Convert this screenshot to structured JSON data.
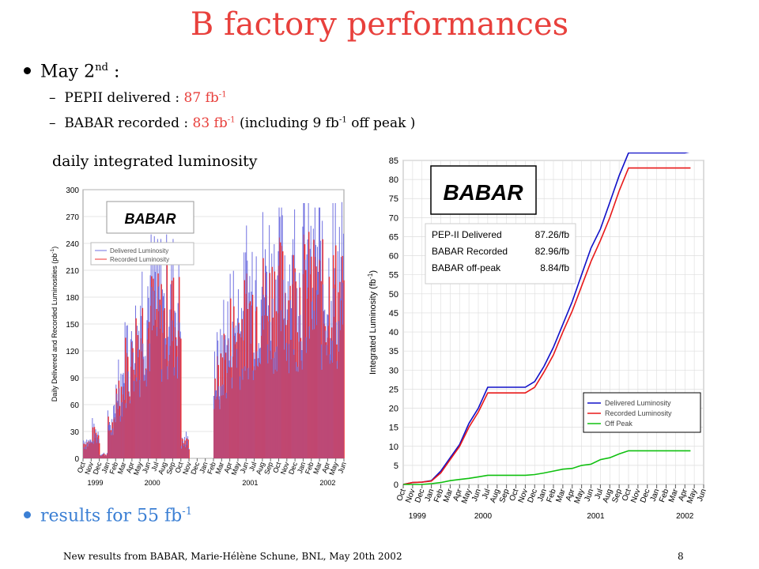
{
  "slide": {
    "title": "B factory performances",
    "bullet1": "May 2",
    "bullet1_sup": "nd",
    "bullet1_tail": " :",
    "sub1_prefix": "PEPII delivered : ",
    "sub1_value": "87 fb",
    "sub1_sup": "-1",
    "sub2_prefix": "BABAR recorded : ",
    "sub2_value": "83 fb",
    "sub2_sup": "-1",
    "sub2_tail1": " (including 9 fb",
    "sub2_tail_sup": "-1",
    "sub2_tail2": " off peak )",
    "caption": "daily integrated luminosity",
    "bullet2": "results for 55 fb",
    "bullet2_sup": "-1",
    "footer": "New results from BABAR, Marie-Hélène Schune, BNL, May 20th 2002",
    "page_number": "8"
  },
  "colors": {
    "title": "#e8403c",
    "highlight": "#e8403c",
    "link": "#3b7fd4",
    "delivered": "#1010c8",
    "recorded": "#e81818",
    "offpeak": "#10c010"
  },
  "chart_data": [
    {
      "type": "bar",
      "title": "",
      "logo_text": "BABAR",
      "ylabel": "Daily Delivered and Recorded Luminosities (pb-1)",
      "xlabel": "",
      "ylim": [
        0,
        300
      ],
      "yticks": [
        0,
        30,
        60,
        90,
        120,
        150,
        180,
        210,
        240,
        270,
        300
      ],
      "months": [
        "Oct",
        "Nov",
        "Dec",
        "Jan",
        "Feb",
        "Mar",
        "Apr",
        "May",
        "Jun",
        "Jul",
        "Aug",
        "Sep",
        "Oct",
        "Nov",
        "Dec",
        "Jan",
        "Feb",
        "Mar",
        "Apr",
        "May",
        "Jun",
        "Jul",
        "Aug",
        "Sep",
        "Oct",
        "Nov",
        "Dec",
        "Jan",
        "Feb",
        "Mar",
        "Apr",
        "May",
        "Jun"
      ],
      "years": [
        {
          "label": "1999",
          "month_index": 1.5
        },
        {
          "label": "2000",
          "month_index": 8.5
        },
        {
          "label": "2001",
          "month_index": 20.5
        },
        {
          "label": "2002",
          "month_index": 30
        }
      ],
      "grid": true,
      "legend": [
        "Delivered Luminosity",
        "Recorded Luminosity"
      ],
      "legend_position": "top-left",
      "monthly_peak_delivered": [
        30,
        45,
        10,
        60,
        130,
        170,
        200,
        240,
        250,
        245,
        250,
        245,
        30,
        0,
        0,
        0,
        150,
        180,
        220,
        230,
        260,
        270,
        275,
        280,
        280,
        285,
        280,
        285,
        280,
        280,
        285,
        290,
        200
      ],
      "monthly_typical_recorded": [
        20,
        30,
        5,
        40,
        90,
        120,
        150,
        170,
        180,
        175,
        185,
        180,
        20,
        0,
        0,
        0,
        100,
        130,
        160,
        170,
        190,
        200,
        200,
        210,
        210,
        210,
        210,
        215,
        210,
        205,
        210,
        200,
        130
      ]
    },
    {
      "type": "line",
      "title": "",
      "logo_text": "BABAR",
      "ylabel": "Integrated Luminosity (fb-1)",
      "xlabel": "",
      "ylim": [
        0,
        85
      ],
      "yticks": [
        0,
        5,
        10,
        15,
        20,
        25,
        30,
        35,
        40,
        45,
        50,
        55,
        60,
        65,
        70,
        75,
        80,
        85
      ],
      "months": [
        "Oct",
        "Nov",
        "Dec",
        "Jan",
        "Feb",
        "Mar",
        "Apr",
        "May",
        "Jun",
        "Jul",
        "Aug",
        "Sep",
        "Oct",
        "Nov",
        "Dec",
        "Jan",
        "Feb",
        "Mar",
        "Apr",
        "May",
        "Jun",
        "Jul",
        "Aug",
        "Sep",
        "Oct",
        "Nov",
        "Dec",
        "Jan",
        "Feb",
        "Mar",
        "Apr",
        "May",
        "Jun"
      ],
      "years": [
        {
          "label": "1999",
          "month_index": 1.5
        },
        {
          "label": "2000",
          "month_index": 8.5
        },
        {
          "label": "2001",
          "month_index": 20.5
        },
        {
          "label": "2002",
          "month_index": 30
        }
      ],
      "grid": true,
      "totals_box": [
        {
          "label": "PEP-II Delivered",
          "value": "87.26/fb"
        },
        {
          "label": "BABAR Recorded",
          "value": "82.96/fb"
        },
        {
          "label": "BABAR off-peak",
          "value": "8.84/fb"
        }
      ],
      "legend_position": "bottom-right",
      "series": [
        {
          "name": "Delivered Luminosity",
          "color": "#1010c8",
          "x": [
            0,
            1,
            2,
            3,
            4,
            5,
            6,
            7,
            8,
            9,
            10,
            11,
            12,
            13,
            14,
            15,
            16,
            17,
            18,
            19,
            20,
            21,
            22,
            23,
            24,
            25,
            26,
            27,
            28,
            29,
            30,
            30.6
          ],
          "y": [
            0,
            0.5,
            0.6,
            1,
            3.5,
            7,
            10.5,
            16,
            20,
            25.5,
            25.5,
            25.5,
            25.5,
            25.5,
            27,
            31,
            36,
            42,
            48,
            55,
            62,
            67,
            74,
            81,
            87,
            87,
            87,
            87,
            87,
            87,
            87,
            87.3
          ]
        },
        {
          "name": "Recorded Luminosity",
          "color": "#e81818",
          "x": [
            0,
            1,
            2,
            3,
            4,
            5,
            6,
            7,
            8,
            9,
            10,
            11,
            12,
            13,
            14,
            15,
            16,
            17,
            18,
            19,
            20,
            21,
            22,
            23,
            24,
            25,
            26,
            27,
            28,
            29,
            30,
            30.6
          ],
          "y": [
            0,
            0.5,
            0.6,
            0.9,
            3,
            6.5,
            10,
            15,
            19,
            24,
            24,
            24,
            24,
            24,
            25.5,
            29.5,
            34,
            40,
            45.5,
            52,
            58.5,
            64,
            70,
            77,
            83,
            83,
            83,
            83,
            83,
            83,
            83,
            83
          ]
        },
        {
          "name": "Off Peak",
          "color": "#10c010",
          "x": [
            0,
            1,
            2,
            3,
            4,
            5,
            6,
            7,
            8,
            9,
            10,
            11,
            12,
            13,
            14,
            15,
            16,
            17,
            18,
            19,
            20,
            21,
            22,
            23,
            24,
            25,
            26,
            27,
            28,
            29,
            30,
            30.6
          ],
          "y": [
            0,
            0,
            0,
            0.2,
            0.5,
            1,
            1.3,
            1.6,
            2,
            2.4,
            2.4,
            2.4,
            2.4,
            2.4,
            2.6,
            3,
            3.5,
            4,
            4.2,
            5,
            5.3,
            6.5,
            7,
            8,
            8.84,
            8.84,
            8.84,
            8.84,
            8.84,
            8.84,
            8.84,
            8.84
          ]
        }
      ]
    }
  ]
}
